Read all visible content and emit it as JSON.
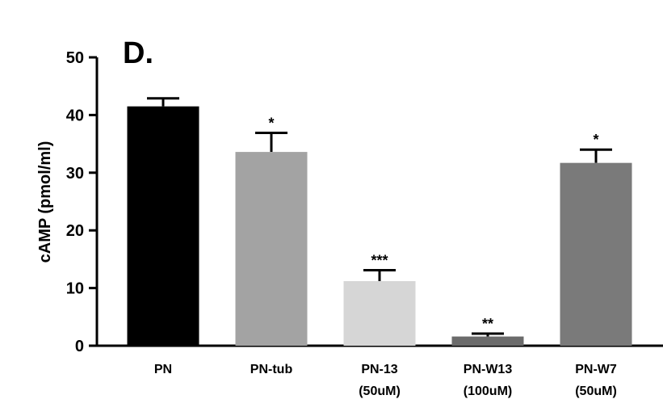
{
  "chart_data": {
    "type": "bar",
    "title": "D.",
    "xlabel": "",
    "ylabel": "cAMP (pmol/ml)",
    "ylim": [
      0,
      50
    ],
    "yticks": [
      "0",
      "10",
      "20",
      "30",
      "40",
      "50"
    ],
    "grid": false,
    "legend": "none",
    "categories": [
      [
        "PN"
      ],
      [
        "PN-tub"
      ],
      [
        "PN-13",
        "(50uM)"
      ],
      [
        "PN-W13",
        "(100uM)"
      ],
      [
        "PN-W7",
        "(50uM)"
      ]
    ],
    "values": [
      41.5,
      33.6,
      11.2,
      1.6,
      31.7
    ],
    "errors": [
      1.4,
      3.3,
      1.9,
      0.5,
      2.3
    ],
    "significance": [
      "",
      "*",
      "***",
      "**",
      "*"
    ],
    "colors": [
      "#000000",
      "#a3a3a3",
      "#d6d6d6",
      "#6b6b6b",
      "#7a7a7a"
    ]
  }
}
